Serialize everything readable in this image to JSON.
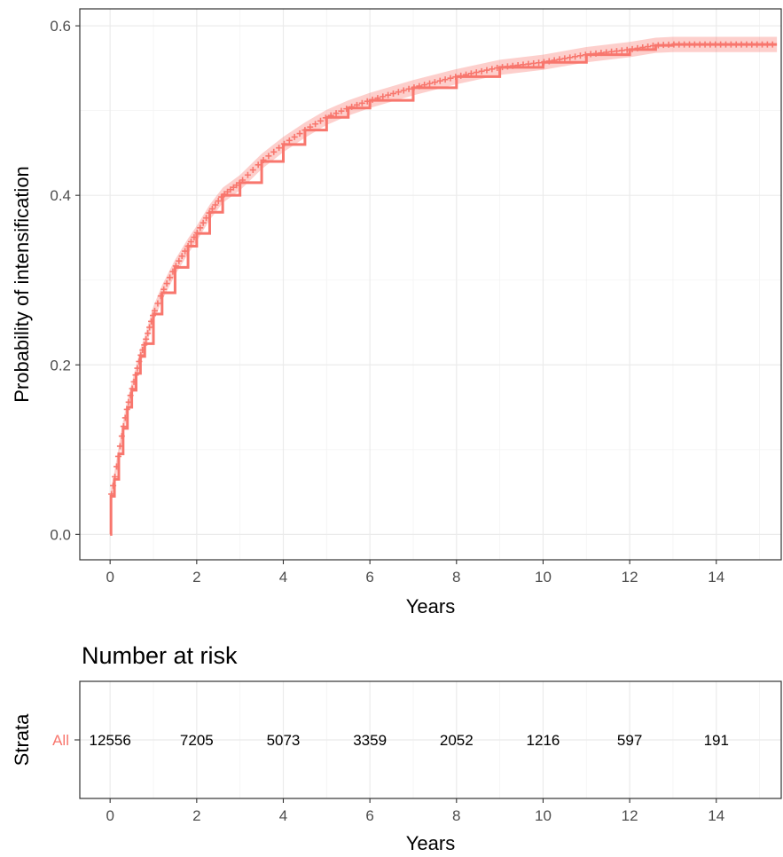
{
  "chart_data": [
    {
      "type": "line",
      "subtype": "cumulative-incidence",
      "xlabel": "Years",
      "ylabel": "Probability of intensification",
      "xlim": [
        -0.7,
        15.5
      ],
      "ylim": [
        -0.03,
        0.62
      ],
      "x_ticks": [
        0,
        2,
        4,
        6,
        8,
        10,
        12,
        14
      ],
      "y_ticks": [
        0.0,
        0.2,
        0.4,
        0.6
      ],
      "y_tick_labels": [
        "0.0",
        "0.2",
        "0.4",
        "0.6"
      ],
      "grid": true,
      "series": [
        {
          "color": "#F8766D",
          "band_color": "#F8766D",
          "censor_marks": true,
          "points": [
            {
              "x": 0.0,
              "y": 0.0
            },
            {
              "x": 0.02,
              "y": 0.045
            },
            {
              "x": 0.1,
              "y": 0.065
            },
            {
              "x": 0.2,
              "y": 0.095
            },
            {
              "x": 0.3,
              "y": 0.125
            },
            {
              "x": 0.4,
              "y": 0.15
            },
            {
              "x": 0.5,
              "y": 0.17
            },
            {
              "x": 0.6,
              "y": 0.19
            },
            {
              "x": 0.7,
              "y": 0.21
            },
            {
              "x": 0.8,
              "y": 0.225
            },
            {
              "x": 1.0,
              "y": 0.26
            },
            {
              "x": 1.2,
              "y": 0.285
            },
            {
              "x": 1.5,
              "y": 0.315
            },
            {
              "x": 1.8,
              "y": 0.34
            },
            {
              "x": 2.0,
              "y": 0.355
            },
            {
              "x": 2.3,
              "y": 0.38
            },
            {
              "x": 2.6,
              "y": 0.4
            },
            {
              "x": 3.0,
              "y": 0.415
            },
            {
              "x": 3.5,
              "y": 0.44
            },
            {
              "x": 4.0,
              "y": 0.46
            },
            {
              "x": 4.5,
              "y": 0.477
            },
            {
              "x": 5.0,
              "y": 0.492
            },
            {
              "x": 5.5,
              "y": 0.503
            },
            {
              "x": 6.0,
              "y": 0.512
            },
            {
              "x": 7.0,
              "y": 0.527
            },
            {
              "x": 8.0,
              "y": 0.54
            },
            {
              "x": 9.0,
              "y": 0.551
            },
            {
              "x": 10.0,
              "y": 0.557
            },
            {
              "x": 11.0,
              "y": 0.566
            },
            {
              "x": 12.0,
              "y": 0.572
            },
            {
              "x": 12.6,
              "y": 0.577
            },
            {
              "x": 13.0,
              "y": 0.578
            },
            {
              "x": 14.0,
              "y": 0.578
            },
            {
              "x": 15.0,
              "y": 0.578
            },
            {
              "x": 15.4,
              "y": 0.578
            }
          ],
          "ci_halfwidth": 0.009
        }
      ]
    },
    {
      "type": "table",
      "title": "Number at risk",
      "xlabel": "Years",
      "ylabel": "Strata",
      "xlim": [
        -0.7,
        15.5
      ],
      "x_ticks": [
        0,
        2,
        4,
        6,
        8,
        10,
        12,
        14
      ],
      "strata": [
        {
          "name": "All",
          "color": "#F8766D",
          "x": [
            0,
            2,
            4,
            6,
            8,
            10,
            12,
            14
          ],
          "values": [
            12556,
            7205,
            5073,
            3359,
            2052,
            1216,
            597,
            191
          ]
        }
      ]
    }
  ]
}
